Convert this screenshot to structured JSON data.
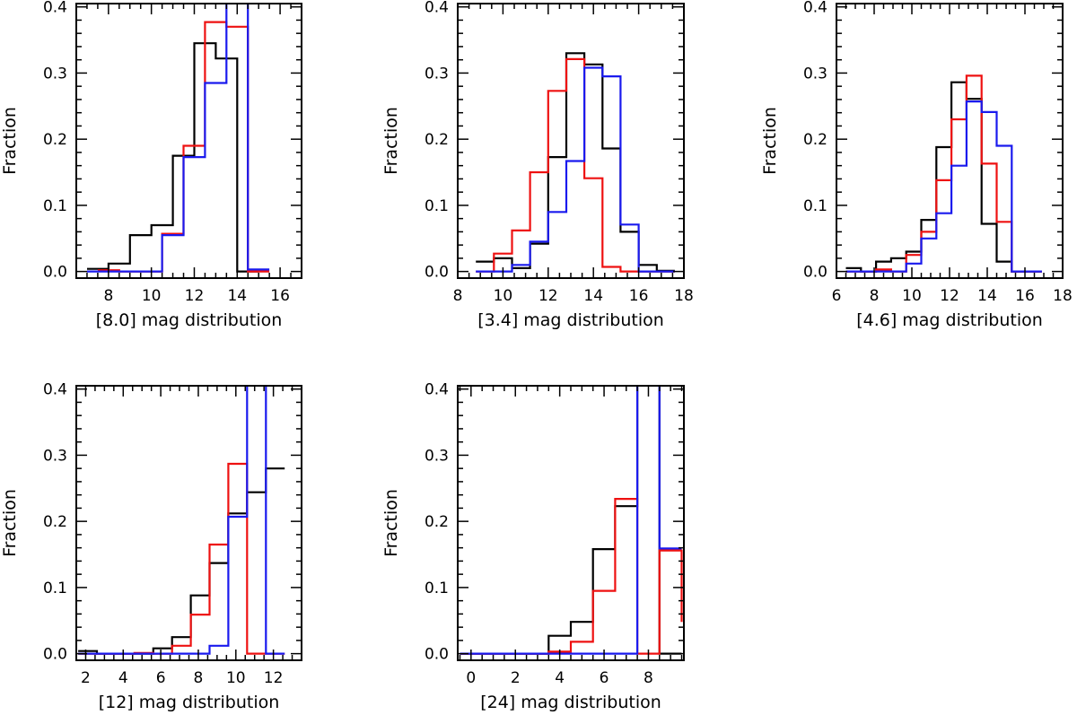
{
  "colors": {
    "black": "#000000",
    "red": "#ee1111",
    "blue": "#1a1aee",
    "frame": "#000000"
  },
  "chart_data": [
    {
      "type": "step-histogram",
      "xlabel": "[8.0] mag distribution",
      "ylabel": "Fraction",
      "xlim": [
        6.5,
        17
      ],
      "ylim": [
        -0.01,
        0.405
      ],
      "xticks": [
        8,
        10,
        12,
        14,
        16
      ],
      "yticks": [
        0.0,
        0.1,
        0.2,
        0.3,
        0.4
      ],
      "ytick_labels": [
        "0.0",
        "0.1",
        "0.2",
        "0.3",
        "0.4"
      ],
      "series": [
        {
          "name": "black",
          "color": "#000000",
          "bins": [
            7,
            8,
            9,
            10,
            11,
            12,
            13,
            14,
            15
          ],
          "values": [
            0.004,
            0.012,
            0.055,
            0.07,
            0.175,
            0.345,
            0.322,
            0.0
          ]
        },
        {
          "name": "red",
          "color": "#ee1111",
          "bins": [
            7.5,
            8.5,
            9.5,
            10.5,
            11.5,
            12.5,
            13.5,
            14.5,
            15.5
          ],
          "values": [
            0.002,
            0.0,
            0.0,
            0.057,
            0.19,
            0.377,
            0.37,
            0.0
          ]
        },
        {
          "name": "blue",
          "color": "#1a1aee",
          "bins": [
            7,
            8,
            9,
            10.5,
            11.5,
            12.5,
            13.5,
            14.5,
            15.5
          ],
          "values": [
            0.0,
            0.0,
            0.0,
            0.055,
            0.173,
            0.285,
            0.5,
            0.003
          ]
        }
      ]
    },
    {
      "type": "step-histogram",
      "xlabel": "[3.4] mag distribution",
      "ylabel": "Fraction",
      "xlim": [
        8,
        18
      ],
      "ylim": [
        -0.01,
        0.405
      ],
      "xticks": [
        8,
        10,
        12,
        14,
        16,
        18
      ],
      "yticks": [
        0.0,
        0.1,
        0.2,
        0.3,
        0.4
      ],
      "ytick_labels": [
        "0.0",
        "0.1",
        "0.2",
        "0.3",
        "0.4"
      ],
      "series": [
        {
          "name": "black",
          "color": "#000000",
          "bins": [
            8.8,
            9.6,
            10.4,
            11.2,
            12.0,
            12.8,
            13.6,
            14.4,
            15.2,
            16.0,
            16.8,
            17.6
          ],
          "values": [
            0.015,
            0.02,
            0.005,
            0.042,
            0.173,
            0.33,
            0.313,
            0.186,
            0.06,
            0.01,
            0.001
          ]
        },
        {
          "name": "red",
          "color": "#ee1111",
          "bins": [
            8.8,
            9.6,
            10.4,
            11.2,
            12.0,
            12.8,
            13.6,
            14.4,
            15.2,
            16.0,
            16.8,
            17.6
          ],
          "values": [
            0.0,
            0.027,
            0.062,
            0.15,
            0.273,
            0.321,
            0.141,
            0.007,
            0.0,
            0.0,
            0.0
          ]
        },
        {
          "name": "blue",
          "color": "#1a1aee",
          "bins": [
            8.8,
            9.6,
            10.4,
            11.2,
            12.0,
            12.8,
            13.6,
            14.4,
            15.2,
            16.0,
            16.8,
            17.6
          ],
          "values": [
            0.0,
            0.0,
            0.01,
            0.045,
            0.09,
            0.167,
            0.308,
            0.295,
            0.071,
            0.0,
            0.0
          ]
        }
      ]
    },
    {
      "type": "step-histogram",
      "xlabel": "[4.6] mag distribution",
      "ylabel": "Fraction",
      "xlim": [
        6,
        18
      ],
      "ylim": [
        -0.01,
        0.405
      ],
      "xticks": [
        6,
        8,
        10,
        12,
        14,
        16,
        18
      ],
      "yticks": [
        0.0,
        0.1,
        0.2,
        0.3,
        0.4
      ],
      "ytick_labels": [
        "0.0",
        "0.1",
        "0.2",
        "0.3",
        "0.4"
      ],
      "series": [
        {
          "name": "black",
          "color": "#000000",
          "bins": [
            6.5,
            7.3,
            8.1,
            8.9,
            9.7,
            10.5,
            11.3,
            12.1,
            12.9,
            13.7,
            14.5,
            15.3,
            16.1,
            16.9
          ],
          "values": [
            0.005,
            0.0,
            0.015,
            0.02,
            0.03,
            0.078,
            0.188,
            0.286,
            0.261,
            0.072,
            0.015,
            0.0,
            0.0
          ]
        },
        {
          "name": "red",
          "color": "#ee1111",
          "bins": [
            6.5,
            7.3,
            8.1,
            8.9,
            9.7,
            10.5,
            11.3,
            12.1,
            12.9,
            13.7,
            14.5,
            15.3,
            16.1,
            16.9
          ],
          "values": [
            0.0,
            0.0,
            0.003,
            0.0,
            0.025,
            0.06,
            0.138,
            0.23,
            0.296,
            0.163,
            0.075,
            0.0,
            0.0
          ]
        },
        {
          "name": "blue",
          "color": "#1a1aee",
          "bins": [
            6.5,
            7.3,
            8.1,
            8.9,
            9.7,
            10.5,
            11.3,
            12.1,
            12.9,
            13.7,
            14.5,
            15.3,
            16.1,
            16.9
          ],
          "values": [
            0.0,
            0.0,
            0.0,
            0.0,
            0.012,
            0.05,
            0.088,
            0.16,
            0.257,
            0.241,
            0.19,
            0.0,
            0.0
          ]
        }
      ]
    },
    {
      "type": "step-histogram",
      "xlabel": "[12] mag distribution",
      "ylabel": "Fraction",
      "xlim": [
        1.5,
        13.5
      ],
      "ylim": [
        -0.01,
        0.405
      ],
      "xticks": [
        2,
        4,
        6,
        8,
        10,
        12
      ],
      "yticks": [
        0.0,
        0.1,
        0.2,
        0.3,
        0.4
      ],
      "ytick_labels": [
        "0.0",
        "0.1",
        "0.2",
        "0.3",
        "0.4"
      ],
      "series": [
        {
          "name": "black",
          "color": "#000000",
          "bins": [
            1.6,
            2.6,
            3.6,
            4.6,
            5.6,
            6.6,
            7.6,
            8.6,
            9.6,
            10.6,
            11.6,
            12.6
          ],
          "values": [
            0.004,
            0.0,
            0.0,
            0.0,
            0.008,
            0.025,
            0.088,
            0.137,
            0.212,
            0.244,
            0.28
          ]
        },
        {
          "name": "red",
          "color": "#ee1111",
          "bins": [
            1.6,
            2.6,
            3.6,
            4.6,
            5.6,
            6.6,
            7.6,
            8.6,
            9.6,
            10.6,
            11.6,
            12.6
          ],
          "values": [
            0.0,
            0.0,
            0.0,
            0.001,
            0.0,
            0.012,
            0.059,
            0.165,
            0.287,
            0.0,
            0.0
          ]
        },
        {
          "name": "blue",
          "color": "#1a1aee",
          "bins": [
            1.6,
            2.6,
            3.6,
            4.6,
            5.6,
            6.6,
            7.6,
            8.6,
            9.6,
            10.6,
            11.6,
            12.6
          ],
          "values": [
            0.0,
            0.0,
            0.0,
            0.0,
            0.0,
            0.0,
            0.0,
            0.012,
            0.207,
            0.5,
            0.0
          ]
        }
      ]
    },
    {
      "type": "step-histogram",
      "xlabel": "[24] mag distribution",
      "ylabel": "Fraction",
      "xlim": [
        -0.6,
        9.6
      ],
      "ylim": [
        -0.01,
        0.405
      ],
      "xticks": [
        0,
        2,
        4,
        6,
        8
      ],
      "yticks": [
        0.0,
        0.1,
        0.2,
        0.3,
        0.4
      ],
      "ytick_labels": [
        "0.0",
        "0.1",
        "0.2",
        "0.3",
        "0.4"
      ],
      "series": [
        {
          "name": "black",
          "color": "#000000",
          "bins": [
            -0.5,
            0.5,
            1.5,
            2.5,
            3.5,
            4.5,
            5.5,
            6.5,
            7.5,
            8.5,
            9.5
          ],
          "values": [
            0.0,
            0.0,
            0.0,
            0.0,
            0.027,
            0.048,
            0.158,
            0.223,
            0.5,
            0.0
          ]
        },
        {
          "name": "red",
          "color": "#ee1111",
          "bins": [
            -0.5,
            0.5,
            1.5,
            2.5,
            3.5,
            4.5,
            5.5,
            6.5,
            7.5,
            8.5,
            9.5
          ],
          "values": [
            0.0,
            0.0,
            0.0,
            0.0,
            0.003,
            0.018,
            0.095,
            0.234,
            0.0,
            0.156,
            0.048
          ]
        },
        {
          "name": "blue",
          "color": "#1a1aee",
          "bins": [
            -0.5,
            0.5,
            1.5,
            2.5,
            3.5,
            4.5,
            5.5,
            6.5,
            7.5,
            8.5,
            9.5
          ],
          "values": [
            0.0,
            0.0,
            0.0,
            0.0,
            0.0,
            0.0,
            0.0,
            0.0,
            0.5,
            0.159
          ]
        }
      ]
    }
  ]
}
